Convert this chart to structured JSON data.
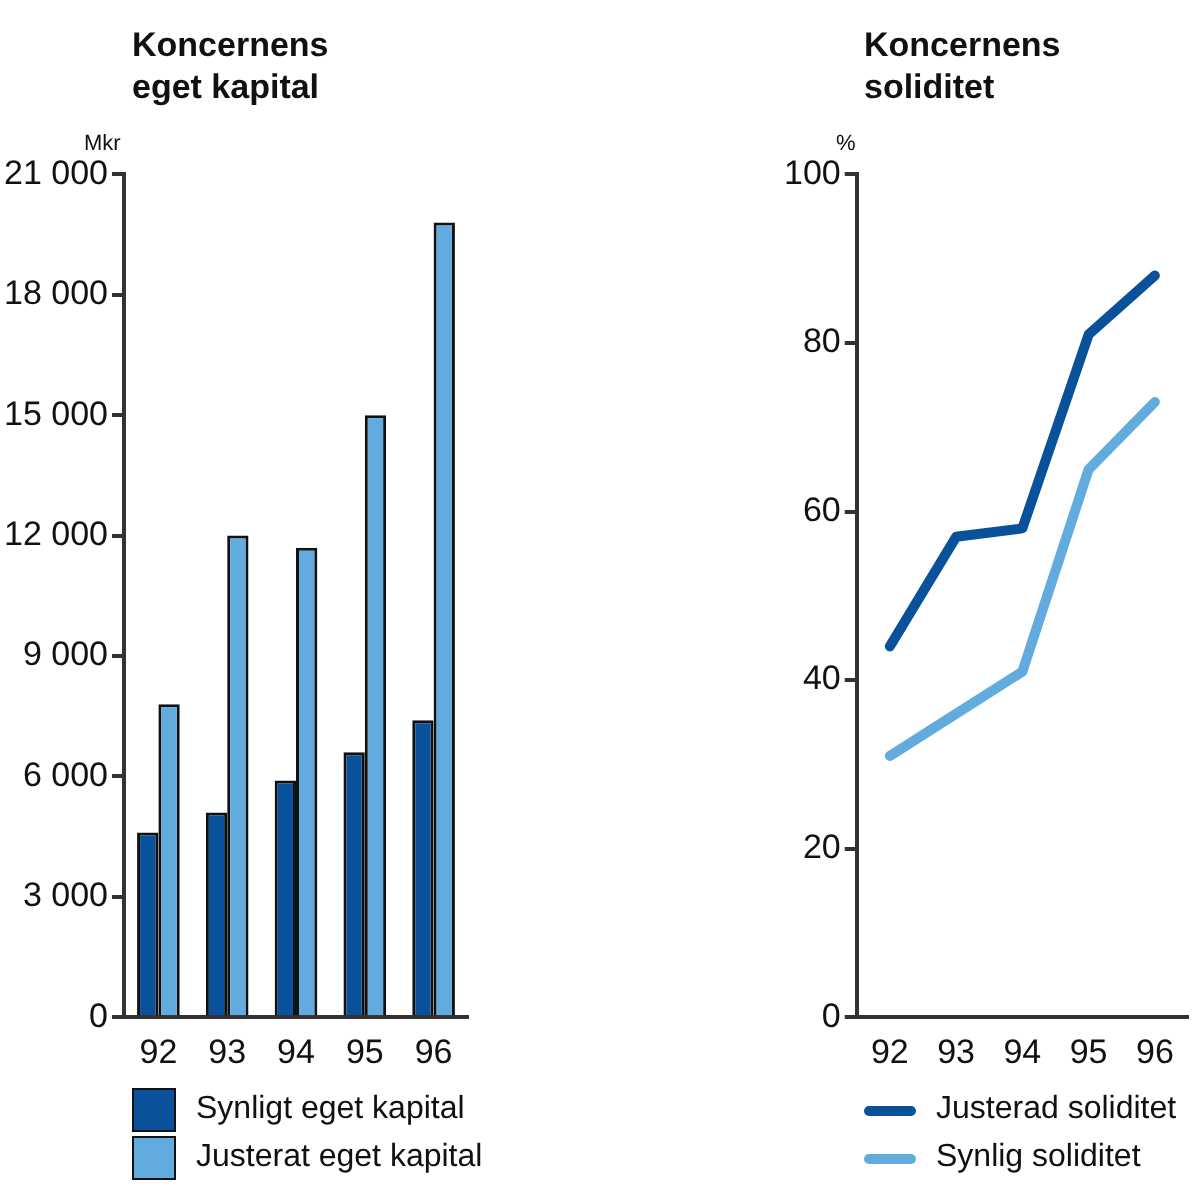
{
  "chart_data": [
    {
      "type": "bar",
      "title": "Koncernens\neget kapital",
      "ylabel": "Mkr",
      "categories": [
        "92",
        "93",
        "94",
        "95",
        "96"
      ],
      "series": [
        {
          "name": "Synligt eget kapital",
          "color": "#0a519b",
          "values": [
            4600,
            5100,
            5900,
            6600,
            7400
          ]
        },
        {
          "name": "Justerat eget kapital",
          "color": "#62abdf",
          "values": [
            7800,
            12000,
            11700,
            15000,
            19800
          ]
        }
      ],
      "ylim": [
        0,
        21000
      ],
      "yticks": [
        {
          "value": 0,
          "label": "0"
        },
        {
          "value": 3000,
          "label": "3 000"
        },
        {
          "value": 6000,
          "label": "6 000"
        },
        {
          "value": 9000,
          "label": "9 000"
        },
        {
          "value": 12000,
          "label": "12 000"
        },
        {
          "value": 15000,
          "label": "15 000"
        },
        {
          "value": 18000,
          "label": "18 000"
        },
        {
          "value": 21000,
          "label": "21 000"
        }
      ],
      "grid": false,
      "legend": "bottom"
    },
    {
      "type": "line",
      "title": "Koncernens\nsoliditet",
      "ylabel": "%",
      "categories": [
        "92",
        "93",
        "94",
        "95",
        "96"
      ],
      "series": [
        {
          "name": "Justerad soliditet",
          "color": "#0a519b",
          "values": [
            44,
            57,
            58,
            81,
            88
          ]
        },
        {
          "name": "Synlig soliditet",
          "color": "#62abdf",
          "values": [
            31,
            36,
            41,
            65,
            73
          ]
        }
      ],
      "ylim": [
        0,
        100
      ],
      "yticks": [
        0,
        20,
        40,
        60,
        80,
        100
      ],
      "grid": false,
      "legend": "bottom",
      "marker": "none",
      "line_style": "solid"
    }
  ]
}
